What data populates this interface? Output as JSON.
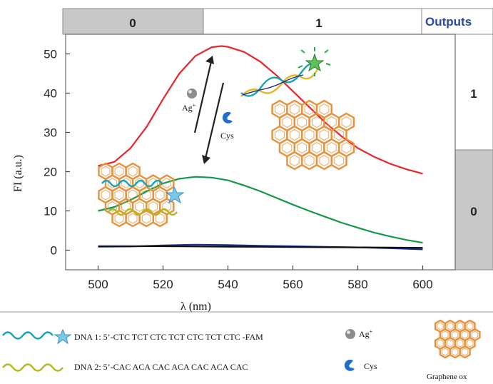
{
  "chart_data": {
    "type": "line",
    "title": "",
    "xlabel": "λ (nm)",
    "ylabel": "FI (a.u.)",
    "xlim": [
      490,
      610
    ],
    "ylim": [
      -5,
      55
    ],
    "x_ticks": [
      "500",
      "520",
      "540",
      "560",
      "580",
      "600"
    ],
    "y_ticks": [
      "0",
      "10",
      "20",
      "30",
      "40",
      "50"
    ],
    "grid": false,
    "series": [
      {
        "color": "#e8262b",
        "x": [
          500,
          505,
          510,
          515,
          520,
          525,
          530,
          535,
          538,
          540,
          545,
          550,
          555,
          560,
          565,
          570,
          575,
          580,
          585,
          590,
          595,
          600
        ],
        "y": [
          21.5,
          22.5,
          26,
          31.5,
          38.5,
          45,
          49.5,
          51.7,
          52,
          51.8,
          50.5,
          48,
          44.5,
          40.5,
          36.5,
          32.5,
          29,
          26,
          23.8,
          22,
          20.6,
          19.5
        ]
      },
      {
        "color": "#13984a",
        "x": [
          500,
          505,
          510,
          515,
          520,
          525,
          530,
          535,
          540,
          545,
          550,
          555,
          560,
          565,
          570,
          575,
          580,
          585,
          590,
          595,
          600
        ],
        "y": [
          10,
          11,
          12.8,
          15,
          17,
          18.2,
          18.7,
          18.5,
          17.8,
          16.5,
          15,
          13.3,
          11.6,
          10,
          8.5,
          7,
          5.7,
          4.5,
          3.5,
          2.6,
          1.9
        ]
      },
      {
        "color": "#1a2e8c",
        "x": [
          500,
          510,
          520,
          530,
          540,
          550,
          560,
          570,
          580,
          590,
          600
        ],
        "y": [
          0.9,
          0.95,
          1.2,
          1.4,
          1.3,
          1.1,
          1.0,
          0.85,
          0.7,
          0.5,
          0.2
        ]
      },
      {
        "color": "#111111",
        "x": [
          500,
          510,
          520,
          530,
          540,
          550,
          560,
          570,
          580,
          590,
          600
        ],
        "y": [
          1.0,
          1.0,
          1.0,
          0.95,
          0.9,
          0.85,
          0.8,
          0.75,
          0.7,
          0.65,
          0.6
        ]
      }
    ]
  },
  "truth_table": {
    "top_inputs": [
      "0",
      "1"
    ],
    "outputs_label": "Outputs",
    "right_outputs": [
      "1",
      "0"
    ]
  },
  "annotations": {
    "ag_label": "Ag",
    "ag_sup": "+",
    "cys_label": "Cys"
  },
  "legend": {
    "dna1": "DNA 1: 5’-CTC TCT CTC TCT CTC TCT CTC -FAM",
    "dna2": "DNA 2: 5’-CAC ACA CAC ACA CAC ACA CAC",
    "ag": "Ag",
    "ag_sup": "+",
    "cys": "Cys",
    "graphene": "Graphene ox"
  },
  "colors": {
    "graphene_orange": "#e8913a",
    "dna1_teal": "#18a4b4",
    "dna2_olive": "#b5b81e",
    "fam_star": "#7ec8e8",
    "outputs_blue": "#2b4aa8",
    "gray_cell": "#c8c8c8"
  }
}
